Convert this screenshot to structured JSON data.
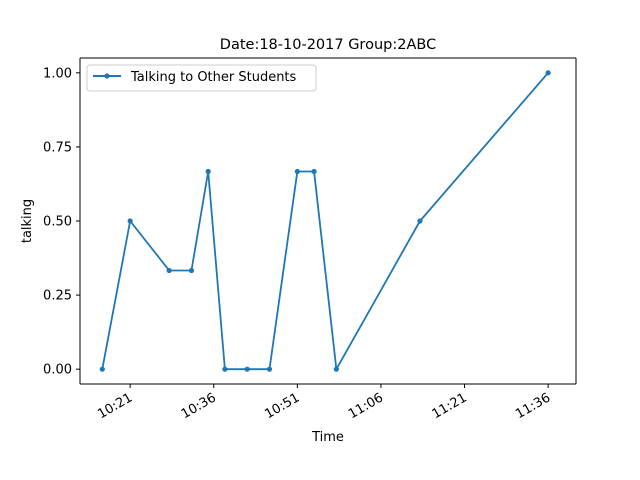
{
  "chart_data": {
    "type": "line",
    "title": "Date:18-10-2017  Group:2ABC",
    "xlabel": "Time",
    "ylabel": "talking",
    "x_tick_labels": [
      "10:21",
      "10:36",
      "10:51",
      "11:06",
      "11:21",
      "11:36"
    ],
    "y_tick_labels": [
      "0.00",
      "0.25",
      "0.50",
      "0.75",
      "1.00"
    ],
    "y_ticks": [
      0,
      0.25,
      0.5,
      0.75,
      1.0
    ],
    "ylim": [
      -0.05,
      1.05
    ],
    "xlim": [
      "10:12",
      "11:41"
    ],
    "grid": false,
    "legend_position": "top-left",
    "series": [
      {
        "name": "Talking to Other Students",
        "color": "#1f77b4",
        "marker": "circle",
        "x": [
          "10:16",
          "10:21",
          "10:28",
          "10:32",
          "10:35",
          "10:38",
          "10:42",
          "10:46",
          "10:51",
          "10:54",
          "10:58",
          "11:13",
          "11:36"
        ],
        "y": [
          0,
          0.5,
          0.333,
          0.333,
          0.667,
          0,
          0,
          0,
          0.667,
          0.667,
          0,
          0.5,
          1.0
        ]
      }
    ]
  }
}
